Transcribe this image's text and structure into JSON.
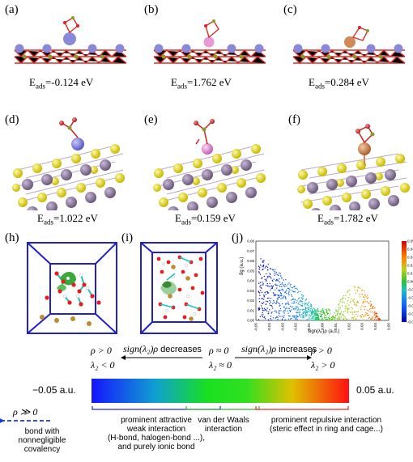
{
  "panels": {
    "a": {
      "label": "(a)",
      "energy_prefix": "E",
      "energy_sub": "ads",
      "energy_value": "=-0.124 eV"
    },
    "b": {
      "label": "(b)",
      "energy_prefix": "E",
      "energy_sub": "ads",
      "energy_value": "=1.762 eV"
    },
    "c": {
      "label": "(c)",
      "energy_prefix": "E",
      "energy_sub": "ads",
      "energy_value": "=0.284 eV"
    },
    "d": {
      "label": "(d)",
      "energy_prefix": "E",
      "energy_sub": "ads",
      "energy_value": "=1.022 eV"
    },
    "e": {
      "label": "(e)",
      "energy_prefix": "E",
      "energy_sub": "ads",
      "energy_value": "=0.159 eV"
    },
    "f": {
      "label": "(f)",
      "energy_prefix": "E",
      "energy_sub": "ads",
      "energy_value": "=1.782 eV"
    },
    "h": {
      "label": "(h)"
    },
    "i": {
      "label": "(i)"
    },
    "j": {
      "label": "(j)"
    }
  },
  "colors": {
    "slab_red": "#d9302a",
    "slab_purple": "#8a88d8",
    "pink_atom": "#e69ad8",
    "orange_atom": "#d08a5a",
    "sulfur_yellow": "#e8e020",
    "mauve_atom": "#8e7a9e",
    "oxygen_red": "#e02020",
    "olive_atom": "#8c9a2a",
    "box_blue": "#2020d0",
    "arrow_blue": "#1a3ad8",
    "green_label": "#2aa84a",
    "red_label": "#e0402a"
  },
  "chart_data": {
    "type": "scatter",
    "ylabel": "δg (a.u.)",
    "xlabel": "sign(λ₂)ρ (a.u.)",
    "xlim": [
      -0.05,
      0.05
    ],
    "ylim": [
      0,
      0.08
    ],
    "x_ticks": [
      "-0.05",
      "-0.04",
      "-0.03",
      "-0.02",
      "-0.01",
      "0.00",
      "0.01",
      "0.02",
      "0.03",
      "0.04",
      "0.05"
    ],
    "y_ticks": [
      "0.00",
      "0.01",
      "0.02",
      "0.03",
      "0.04",
      "0.05",
      "0.06",
      "0.07",
      "0.08"
    ],
    "colorbar_ticks": [
      "0.050",
      "0.040",
      "0.030",
      "0.020",
      "0.010",
      "0.000",
      "-0.010",
      "-0.020",
      "-0.030",
      "-0.040",
      "-0.050"
    ],
    "clusters": [
      {
        "x_range": [
          -0.05,
          -0.005
        ],
        "y_peak": 0.065,
        "color": "blue-green gradient"
      },
      {
        "x_range": [
          -0.005,
          0.005
        ],
        "y_peak": 0.012,
        "color": "green"
      },
      {
        "x_range": [
          0.005,
          0.045
        ],
        "y_peak": 0.035,
        "color": "green-red gradient"
      }
    ],
    "grid": false
  },
  "legend": {
    "left_top": "ρ > 0",
    "left_bottom": "λ₂ < 0",
    "mid_top": "ρ ≈ 0",
    "mid_bottom": "λ₂ ≈ 0",
    "right_top": "ρ > 0",
    "right_bottom": "λ₂ > 0",
    "decreases_prefix": "sign(λ₂)ρ",
    "decreases_word": " decreases",
    "increases_prefix": "sign(λ₂)ρ",
    "increases_word": " increases",
    "bar_left": "−0.05 a.u.",
    "bar_right": "0.05 a.u.",
    "rho_big": "ρ ≫ 0",
    "bond_text": "bond with\nnonnegligible\ncovalency",
    "attractive_text": "prominent attractive\nweak interaction\n(H-bond, halogen-bond ...),\nand purely ionic bond",
    "vdw_text": "van der Waals\ninteraction",
    "repulsive_text": "prominent repulsive interaction\n(steric effect in ring and cage...)"
  }
}
